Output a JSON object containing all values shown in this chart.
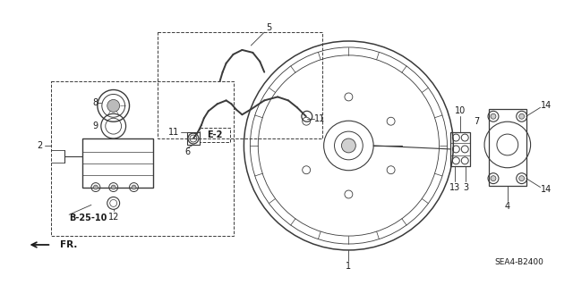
{
  "bg_color": "#ffffff",
  "lc": "#3a3a3a",
  "tc": "#1a1a1a",
  "diagram_code": "SEA4-B2400",
  "ref_label": "E-2",
  "cross_ref": "B-25-10",
  "fr_label": "FR."
}
